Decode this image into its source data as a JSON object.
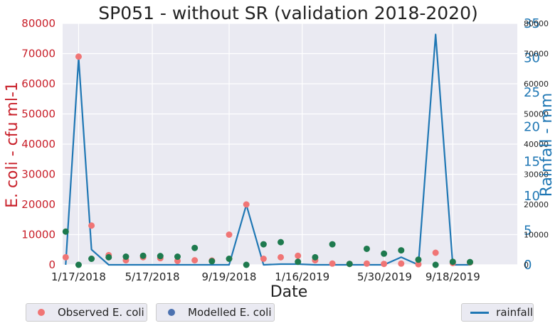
{
  "chart_data": {
    "type": "scatter",
    "title": "SP051 - without SR (validation 2018-2020)",
    "xlabel": "Date",
    "ylabel": "E. coli - cfu ml-1",
    "y2label": "Rainfall - mm",
    "grid": true,
    "legend_placement": "bottom, outside plot",
    "x_tick_labels": [
      "1/17/2018",
      "5/17/2018",
      "9/19/2018",
      "1/16/2019",
      "5/30/2019",
      "9/18/2019"
    ],
    "x_ticks": [
      "2018-01-17",
      "2018-05-17",
      "2018-09-19",
      "2019-01-16",
      "2019-05-30",
      "2019-09-18"
    ],
    "xlim": [
      "2017-12-22",
      "2020-01-01"
    ],
    "ylim": [
      0,
      80000
    ],
    "y_ticks": [
      0,
      10000,
      20000,
      30000,
      40000,
      50000,
      60000,
      70000,
      80000
    ],
    "y2lim": [
      0,
      35
    ],
    "y2_ticks": [
      0,
      5,
      10,
      15,
      20,
      25,
      30,
      35
    ],
    "y3_ticks": [
      0,
      10000,
      20000,
      30000,
      40000,
      50000,
      60000,
      70000,
      80000
    ],
    "colors": {
      "observed": "#f07575",
      "modelled": "#1e7a4e",
      "modelled_legend": "#4c72b0",
      "rainfall": "#1f77b4",
      "left_axis": "#c81e28",
      "right_axis": "#1f77b4",
      "plot_bg": "#eaeaf2"
    },
    "series": [
      {
        "name": "Observed E. coli",
        "kind": "scatter",
        "x": [
          "2017-12-27",
          "2018-01-17",
          "2018-02-07",
          "2018-03-07",
          "2018-04-04",
          "2018-05-02",
          "2018-05-30",
          "2018-06-27",
          "2018-07-25",
          "2018-08-22",
          "2018-09-19",
          "2018-10-17",
          "2018-11-14",
          "2018-12-12",
          "2019-01-09",
          "2019-02-06",
          "2019-03-06",
          "2019-04-03",
          "2019-05-01",
          "2019-05-29",
          "2019-06-26",
          "2019-07-24",
          "2019-08-21",
          "2019-09-18",
          "2019-10-16"
        ],
        "values": [
          2500,
          69000,
          13000,
          3200,
          1500,
          2500,
          2200,
          1300,
          1500,
          1400,
          10000,
          20000,
          2000,
          2500,
          3000,
          1500,
          400,
          300,
          400,
          300,
          400,
          200,
          4000,
          600,
          800
        ]
      },
      {
        "name": "Modelled E. coli",
        "kind": "scatter",
        "x": [
          "2017-12-27",
          "2018-01-17",
          "2018-02-07",
          "2018-03-07",
          "2018-04-04",
          "2018-05-02",
          "2018-05-30",
          "2018-06-27",
          "2018-07-25",
          "2018-08-22",
          "2018-09-19",
          "2018-10-17",
          "2018-11-14",
          "2018-12-12",
          "2019-01-09",
          "2019-02-06",
          "2019-03-06",
          "2019-04-03",
          "2019-05-01",
          "2019-05-29",
          "2019-06-26",
          "2019-07-24",
          "2019-08-21",
          "2019-09-18",
          "2019-10-16"
        ],
        "values": [
          11000,
          0,
          2000,
          2500,
          2700,
          3000,
          2900,
          2700,
          5600,
          1200,
          2000,
          0,
          6800,
          7500,
          1000,
          2500,
          6800,
          300,
          5300,
          3700,
          4800,
          1700,
          0,
          1000,
          900
        ]
      },
      {
        "name": "rainfall",
        "kind": "line",
        "axis": "right",
        "x": [
          "2017-12-27",
          "2018-01-17",
          "2018-02-07",
          "2018-03-07",
          "2018-04-04",
          "2018-05-02",
          "2018-05-30",
          "2018-06-27",
          "2018-07-25",
          "2018-08-22",
          "2018-09-19",
          "2018-10-17",
          "2018-11-14",
          "2018-12-12",
          "2019-01-09",
          "2019-02-06",
          "2019-03-06",
          "2019-04-03",
          "2019-05-01",
          "2019-05-29",
          "2019-06-26",
          "2019-07-24",
          "2019-08-21",
          "2019-09-18",
          "2019-10-16"
        ],
        "values": [
          0,
          30,
          2.2,
          0,
          0,
          0,
          0,
          0,
          0,
          0,
          0,
          8.7,
          0,
          0.1,
          0.1,
          0,
          0,
          0,
          0,
          0,
          1.1,
          0,
          33.4,
          0,
          0
        ]
      }
    ]
  }
}
